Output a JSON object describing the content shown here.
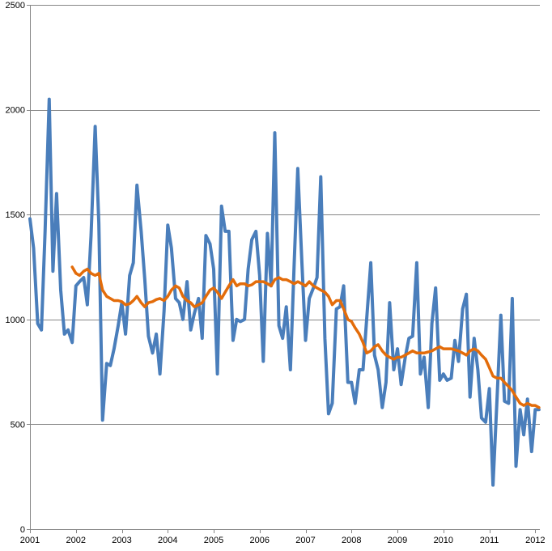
{
  "chart_data": {
    "type": "line",
    "title": "",
    "xlabel": "",
    "ylabel": "",
    "xlim": [
      2001.0,
      2012.1
    ],
    "ylim": [
      0,
      2500
    ],
    "y_ticks": [
      0,
      500,
      1000,
      1500,
      2000,
      2500
    ],
    "x_ticks": [
      2001,
      2002,
      2003,
      2004,
      2005,
      2006,
      2007,
      2008,
      2009,
      2010,
      2011,
      2012
    ],
    "grid": "horizontal",
    "legend": "none",
    "series": [
      {
        "color": "#4a7ebb",
        "x": [
          2001.0,
          2001.08,
          2001.17,
          2001.25,
          2001.33,
          2001.42,
          2001.5,
          2001.58,
          2001.67,
          2001.75,
          2001.83,
          2001.92,
          2002.0,
          2002.08,
          2002.17,
          2002.25,
          2002.33,
          2002.42,
          2002.5,
          2002.58,
          2002.67,
          2002.75,
          2002.83,
          2002.92,
          2003.0,
          2003.08,
          2003.17,
          2003.25,
          2003.33,
          2003.42,
          2003.5,
          2003.58,
          2003.67,
          2003.75,
          2003.83,
          2003.92,
          2004.0,
          2004.08,
          2004.17,
          2004.25,
          2004.33,
          2004.42,
          2004.5,
          2004.58,
          2004.67,
          2004.75,
          2004.83,
          2004.92,
          2005.0,
          2005.08,
          2005.17,
          2005.25,
          2005.33,
          2005.42,
          2005.5,
          2005.58,
          2005.67,
          2005.75,
          2005.83,
          2005.92,
          2006.0,
          2006.08,
          2006.17,
          2006.25,
          2006.33,
          2006.42,
          2006.5,
          2006.58,
          2006.67,
          2006.75,
          2006.83,
          2006.92,
          2007.0,
          2007.08,
          2007.17,
          2007.25,
          2007.33,
          2007.42,
          2007.5,
          2007.58,
          2007.67,
          2007.75,
          2007.83,
          2007.92,
          2008.0,
          2008.08,
          2008.17,
          2008.25,
          2008.33,
          2008.42,
          2008.5,
          2008.58,
          2008.67,
          2008.75,
          2008.83,
          2008.92,
          2009.0,
          2009.08,
          2009.17,
          2009.25,
          2009.33,
          2009.42,
          2009.5,
          2009.58,
          2009.67,
          2009.75,
          2009.83,
          2009.92,
          2010.0,
          2010.08,
          2010.17,
          2010.25,
          2010.33,
          2010.42,
          2010.5,
          2010.58,
          2010.67,
          2010.75,
          2010.83,
          2010.92,
          2011.0,
          2011.08,
          2011.17,
          2011.25,
          2011.33,
          2011.42,
          2011.5,
          2011.58,
          2011.67,
          2011.75,
          2011.83,
          2011.92,
          2012.0,
          2012.08
        ],
        "values": [
          1480,
          1340,
          980,
          950,
          1420,
          2050,
          1230,
          1600,
          1140,
          930,
          950,
          890,
          1160,
          1180,
          1200,
          1070,
          1400,
          1920,
          1460,
          520,
          790,
          780,
          860,
          970,
          1080,
          930,
          1210,
          1270,
          1640,
          1420,
          1190,
          920,
          840,
          930,
          740,
          1040,
          1450,
          1340,
          1100,
          1080,
          1000,
          1180,
          950,
          1030,
          1100,
          910,
          1400,
          1360,
          1240,
          740,
          1540,
          1420,
          1420,
          900,
          1000,
          990,
          1000,
          1240,
          1380,
          1420,
          1210,
          800,
          1410,
          1160,
          1890,
          970,
          910,
          1060,
          760,
          1260,
          1720,
          1270,
          900,
          1100,
          1150,
          1200,
          1680,
          910,
          550,
          600,
          1050,
          1060,
          1160,
          700,
          700,
          600,
          760,
          760,
          1000,
          1270,
          830,
          760,
          580,
          700,
          1080,
          760,
          860,
          690,
          820,
          910,
          920,
          1270,
          740,
          820,
          580,
          980,
          1150,
          710,
          740,
          710,
          720,
          900,
          800,
          1050,
          1120,
          630,
          910,
          760,
          530,
          510,
          670,
          210,
          630,
          1020,
          610,
          600,
          1100,
          300,
          570,
          450,
          620,
          370,
          570,
          570
        ],
        "name": ""
      },
      {
        "color": "#e36c0a",
        "x": [
          2001.92,
          2002.0,
          2002.08,
          2002.17,
          2002.25,
          2002.33,
          2002.42,
          2002.5,
          2002.58,
          2002.67,
          2002.75,
          2002.83,
          2002.92,
          2003.0,
          2003.08,
          2003.17,
          2003.25,
          2003.33,
          2003.42,
          2003.5,
          2003.58,
          2003.67,
          2003.75,
          2003.83,
          2003.92,
          2004.0,
          2004.08,
          2004.17,
          2004.25,
          2004.33,
          2004.42,
          2004.5,
          2004.58,
          2004.67,
          2004.75,
          2004.83,
          2004.92,
          2005.0,
          2005.08,
          2005.17,
          2005.25,
          2005.33,
          2005.42,
          2005.5,
          2005.58,
          2005.67,
          2005.75,
          2005.83,
          2005.92,
          2006.0,
          2006.08,
          2006.17,
          2006.25,
          2006.33,
          2006.42,
          2006.5,
          2006.58,
          2006.67,
          2006.75,
          2006.83,
          2006.92,
          2007.0,
          2007.08,
          2007.17,
          2007.25,
          2007.33,
          2007.42,
          2007.5,
          2007.58,
          2007.67,
          2007.75,
          2007.83,
          2007.92,
          2008.0,
          2008.08,
          2008.17,
          2008.25,
          2008.33,
          2008.42,
          2008.5,
          2008.58,
          2008.67,
          2008.75,
          2008.83,
          2008.92,
          2009.0,
          2009.08,
          2009.17,
          2009.25,
          2009.33,
          2009.42,
          2009.5,
          2009.58,
          2009.67,
          2009.75,
          2009.83,
          2009.92,
          2010.0,
          2010.08,
          2010.17,
          2010.25,
          2010.33,
          2010.42,
          2010.5,
          2010.58,
          2010.67,
          2010.75,
          2010.83,
          2010.92,
          2011.0,
          2011.08,
          2011.17,
          2011.25,
          2011.33,
          2011.42,
          2011.5,
          2011.58,
          2011.67,
          2011.75,
          2011.83,
          2011.92,
          2012.0,
          2012.08
        ],
        "values": [
          1250,
          1220,
          1210,
          1230,
          1240,
          1220,
          1210,
          1220,
          1140,
          1110,
          1100,
          1090,
          1090,
          1085,
          1070,
          1075,
          1090,
          1110,
          1080,
          1060,
          1080,
          1085,
          1095,
          1100,
          1090,
          1110,
          1140,
          1160,
          1150,
          1110,
          1090,
          1080,
          1060,
          1070,
          1080,
          1110,
          1140,
          1150,
          1130,
          1100,
          1130,
          1160,
          1190,
          1160,
          1170,
          1170,
          1160,
          1165,
          1180,
          1180,
          1180,
          1170,
          1160,
          1190,
          1200,
          1190,
          1190,
          1180,
          1170,
          1180,
          1170,
          1160,
          1180,
          1160,
          1150,
          1140,
          1130,
          1110,
          1070,
          1090,
          1090,
          1050,
          1000,
          990,
          960,
          930,
          890,
          840,
          850,
          870,
          880,
          850,
          830,
          820,
          810,
          820,
          820,
          830,
          840,
          850,
          840,
          840,
          840,
          845,
          850,
          860,
          870,
          860,
          860,
          860,
          855,
          850,
          840,
          830,
          850,
          860,
          850,
          830,
          810,
          770,
          730,
          720,
          720,
          700,
          680,
          660,
          630,
          600,
          590,
          600,
          590,
          590,
          580
        ],
        "name": ""
      }
    ]
  }
}
